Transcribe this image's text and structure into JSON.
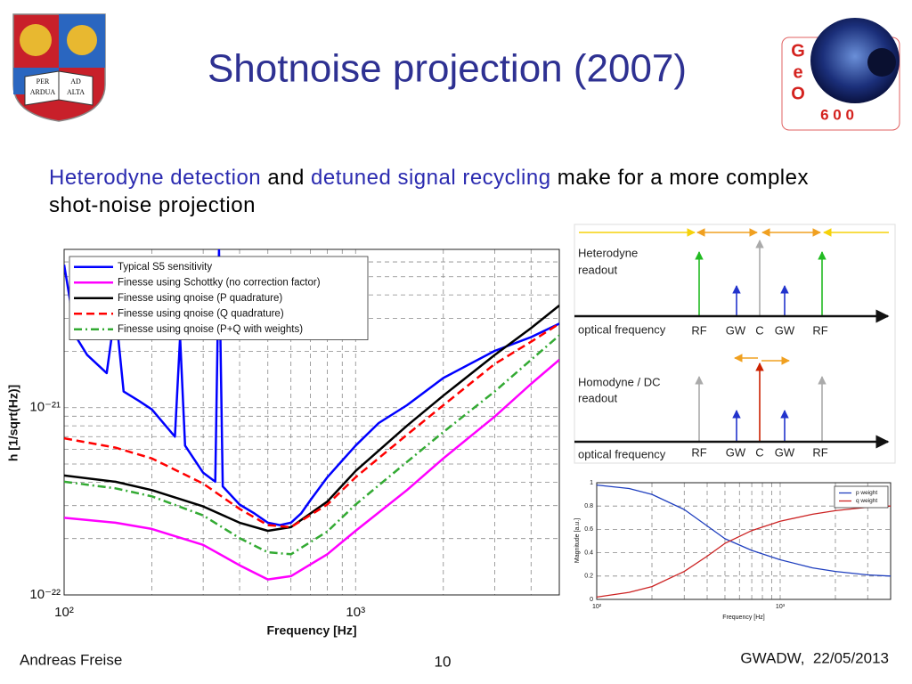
{
  "header": {
    "title": "Shotnoise projection (2007)",
    "crest_motto": [
      "PER",
      "AD",
      "ARDUA",
      "ALTA"
    ],
    "logo_letters": [
      "G",
      "e",
      "O"
    ],
    "logo_number": "6 0 0"
  },
  "body": {
    "highlight_color": "#2b2bb0",
    "segments": [
      {
        "text": "Heterodyne detection",
        "highlight": true
      },
      {
        "text": " and ",
        "highlight": false
      },
      {
        "text": "detuned signal recycling",
        "highlight": true
      },
      {
        "text": " make for a more complex shot-noise projection",
        "highlight": false
      }
    ]
  },
  "chart_data": [
    {
      "type": "line",
      "xlabel": "Frequency [Hz]",
      "ylabel": "h [1/sqrt(Hz)]",
      "log_x": true,
      "log_y": true,
      "grid": true,
      "legend": "upper left",
      "xlim": [
        100,
        5000
      ],
      "ylim": [
        1e-22,
        7e-21
      ],
      "xticks": [
        {
          "value": 100,
          "label": "10²"
        },
        {
          "value": 1000,
          "label": "10³"
        }
      ],
      "yticks": [
        {
          "value": 1e-22,
          "label": "10⁻²²"
        },
        {
          "value": 1e-21,
          "label": "10⁻²¹"
        }
      ],
      "xminor": [
        200,
        300,
        400,
        500,
        600,
        700,
        800,
        900,
        2000,
        3000,
        4000
      ],
      "yminor": [
        2e-22,
        3e-22,
        4e-22,
        5e-22,
        6e-22,
        7e-22,
        8e-22,
        9e-22,
        2e-21,
        3e-21,
        4e-21,
        5e-21,
        6e-21
      ],
      "series": [
        {
          "name": "Typical S5 sensitivity",
          "color": "#0000ff",
          "dash": "solid",
          "width": 2.5,
          "x": [
            100,
            110,
            120,
            140,
            150,
            160,
            180,
            200,
            240,
            250,
            260,
            300,
            330,
            340,
            350,
            400,
            450,
            500,
            550,
            600,
            650,
            700,
            800,
            1000,
            1200,
            1500,
            2000,
            3000,
            4000,
            5000
          ],
          "values": [
            5.79e-21,
            2.38e-21,
            1.91e-21,
            1.53e-21,
            3.33e-21,
            1.22e-21,
            1.09e-21,
            9.78e-22,
            7e-22,
            2.38e-21,
            6.27e-22,
            4.49e-22,
            4.02e-22,
            7e-21,
            3.8e-22,
            3.04e-22,
            2.72e-22,
            2.43e-22,
            2.36e-22,
            2.43e-22,
            2.72e-22,
            3.21e-22,
            4.25e-22,
            6.27e-22,
            8.28e-22,
            1.03e-21,
            1.44e-21,
            2.01e-21,
            2.38e-21,
            2.81e-21
          ]
        },
        {
          "name": "Finesse using Schottky (no correction factor)",
          "color": "#ff00ff",
          "dash": "solid",
          "width": 2.5,
          "x": [
            100,
            150,
            200,
            300,
            400,
            500,
            600,
            800,
            1000,
            1500,
            2000,
            3000,
            4000,
            5000
          ],
          "values": [
            2.58e-22,
            2.43e-22,
            2.25e-22,
            1.85e-22,
            1.44e-22,
            1.21e-22,
            1.26e-22,
            1.65e-22,
            2.2e-22,
            3.63e-22,
            5.36e-22,
            8.95e-22,
            1.34e-21,
            1.8e-21
          ]
        },
        {
          "name": "Finesse using qnoise (P quadrature)",
          "color": "#000000",
          "dash": "solid",
          "width": 2.5,
          "x": [
            100,
            150,
            200,
            300,
            400,
            500,
            600,
            800,
            1000,
            1500,
            2000,
            3000,
            4000,
            5000
          ],
          "values": [
            4.34e-22,
            4.02e-22,
            3.63e-22,
            2.97e-22,
            2.43e-22,
            2.2e-22,
            2.3e-22,
            3.15e-22,
            4.59e-22,
            8e-22,
            1.16e-21,
            1.91e-21,
            2.66e-21,
            3.51e-21
          ]
        },
        {
          "name": "Finesse using qnoise (Q quadrature)",
          "color": "#ff0000",
          "dash": "dashed",
          "width": 2.5,
          "x": [
            100,
            150,
            200,
            300,
            400,
            500,
            600,
            800,
            1000,
            1500,
            2000,
            3000,
            4000,
            5000
          ],
          "values": [
            6.86e-22,
            6.12e-22,
            5.36e-22,
            3.93e-22,
            2.88e-22,
            2.36e-22,
            2.3e-22,
            3.04e-22,
            4.25e-22,
            7.16e-22,
            1.03e-21,
            1.71e-21,
            2.25e-21,
            2.81e-21
          ]
        },
        {
          "name": "Finesse using qnoise (P+Q with weights)",
          "color": "#33aa33",
          "dash": "dashdot",
          "width": 2.5,
          "x": [
            100,
            150,
            200,
            300,
            400,
            500,
            600,
            800,
            1000,
            1500,
            2000,
            3000,
            4000,
            5000
          ],
          "values": [
            4.02e-22,
            3.71e-22,
            3.36e-22,
            2.66e-22,
            2.01e-22,
            1.69e-22,
            1.65e-22,
            2.18e-22,
            3.04e-22,
            5.13e-22,
            7.41e-22,
            1.22e-21,
            1.8e-21,
            2.43e-21
          ]
        }
      ]
    },
    {
      "type": "line",
      "xlabel": "Frequency [Hz]",
      "ylabel": "Magnitude [a.u.]",
      "log_x": true,
      "log_y": false,
      "grid": true,
      "legend": "upper right",
      "xlim": [
        100,
        4000
      ],
      "ylim": [
        0,
        1
      ],
      "xticks": [
        {
          "value": 100,
          "label": "10²"
        },
        {
          "value": 1000,
          "label": "10³"
        }
      ],
      "yticks": [
        0,
        0.2,
        0.4,
        0.6,
        0.8,
        1
      ],
      "xminor": [
        200,
        300,
        400,
        500,
        600,
        700,
        800,
        900,
        2000,
        3000
      ],
      "yminor": [],
      "series": [
        {
          "name": "p weight",
          "color": "#1f3fbf",
          "dash": "solid",
          "width": 1.3,
          "x": [
            100,
            150,
            200,
            300,
            400,
            500,
            700,
            1000,
            1500,
            2000,
            3000,
            4000
          ],
          "values": [
            0.98,
            0.95,
            0.9,
            0.77,
            0.63,
            0.52,
            0.42,
            0.34,
            0.27,
            0.24,
            0.21,
            0.2
          ]
        },
        {
          "name": "q weight",
          "color": "#cc2222",
          "dash": "solid",
          "width": 1.3,
          "x": [
            100,
            150,
            200,
            300,
            400,
            500,
            700,
            1000,
            1500,
            2000,
            3000,
            4000
          ],
          "values": [
            0.02,
            0.06,
            0.11,
            0.24,
            0.37,
            0.48,
            0.59,
            0.67,
            0.73,
            0.76,
            0.79,
            0.8
          ]
        }
      ]
    }
  ],
  "diagram": {
    "heterodyne_label": [
      "Heterodyne",
      "readout"
    ],
    "homodyne_label": [
      "Homodyne / DC",
      "readout"
    ],
    "axis_label": "optical frequency",
    "freq_labels": [
      "RF",
      "GW",
      "C",
      "GW",
      "RF"
    ]
  },
  "footer": {
    "author": "Andreas Freise",
    "page": "10",
    "event": "GWADW,  22/05/2013"
  }
}
